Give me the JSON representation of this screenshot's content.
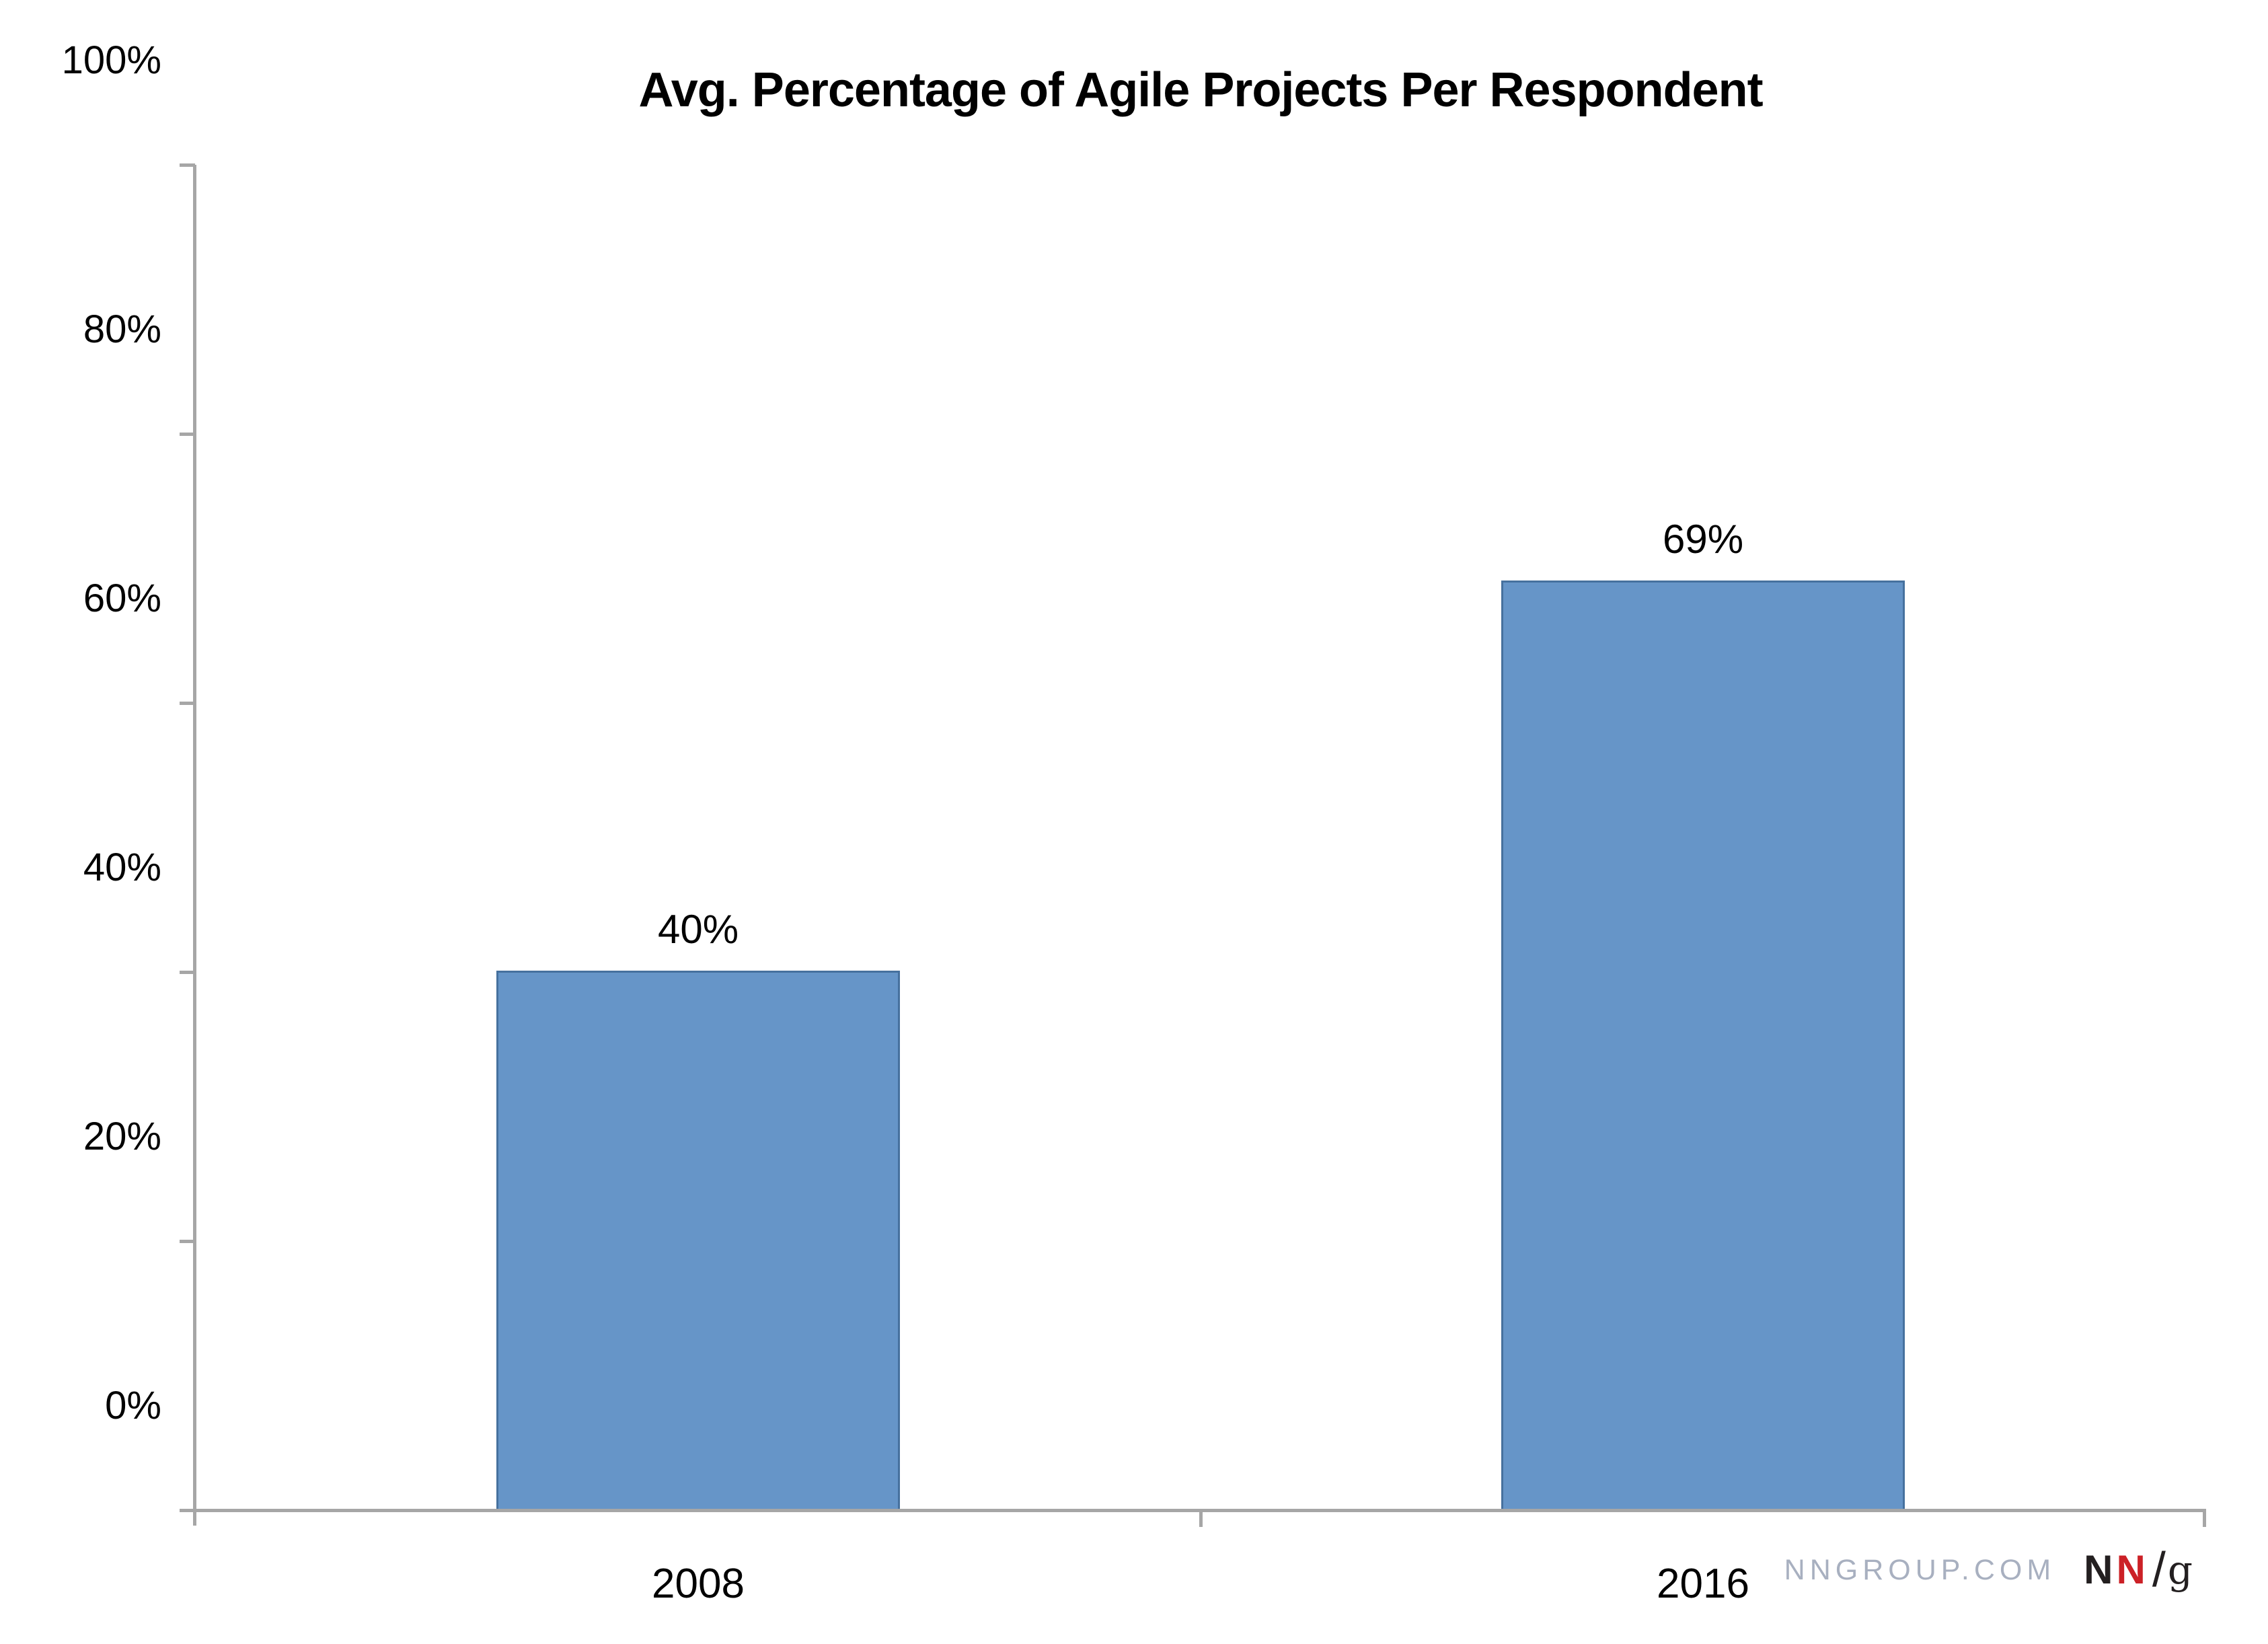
{
  "chart_data": {
    "type": "bar",
    "title": "Avg. Percentage of Agile Projects Per Respondent",
    "categories": [
      "2008",
      "2016"
    ],
    "values": [
      40,
      69
    ],
    "value_labels": [
      "40%",
      "69%"
    ],
    "xlabel": "",
    "ylabel": "",
    "ylim": [
      0,
      100
    ],
    "ytick_interval": 20,
    "ytick_labels_top_to_bottom": [
      "100%",
      "80%",
      "60%",
      "40%",
      "20%",
      "0%"
    ],
    "grid": false,
    "legend_position": "none",
    "colors": {
      "bar_fill": "#6695C8",
      "bar_border": "#46719E",
      "axis": "#A6A6A6",
      "text": "#000000"
    }
  },
  "branding": {
    "website": "NNGROUP.COM",
    "logo_text": "NN/g",
    "logo_parts": {
      "n_black": "N",
      "n_red": "N",
      "slash": "/",
      "g": "g"
    },
    "colors": {
      "website_text": "#A8B0C0",
      "logo_black": "#231F20",
      "logo_red": "#CC2127"
    }
  }
}
